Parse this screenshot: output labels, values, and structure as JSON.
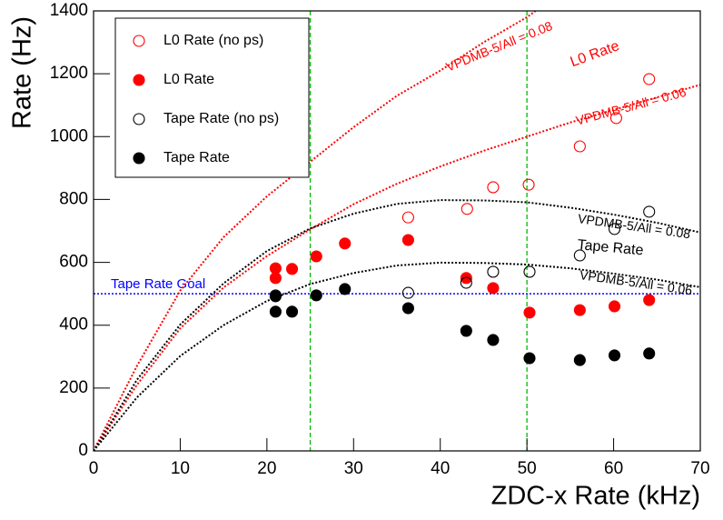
{
  "chart_data": {
    "type": "scatter",
    "xlabel": "ZDC-x Rate (kHz)",
    "ylabel": "Rate (Hz)",
    "xlim": [
      0,
      70
    ],
    "ylim": [
      0,
      1400
    ],
    "xticks": [
      0,
      10,
      20,
      30,
      40,
      50,
      60,
      70
    ],
    "yticks": [
      0,
      200,
      400,
      600,
      800,
      1000,
      1200,
      1400
    ],
    "series": [
      {
        "name": "L0 Rate (no ps)",
        "color": "#ff0000",
        "marker": "open",
        "x": [
          36.3,
          43.1,
          46.1,
          50.2,
          56.1,
          60.3,
          64.1
        ],
        "values": [
          743,
          770,
          839,
          847,
          969,
          1059,
          1183
        ]
      },
      {
        "name": "L0 Rate",
        "color": "#ff0000",
        "marker": "filled",
        "x": [
          21.0,
          21.0,
          22.9,
          25.7,
          29.0,
          36.3,
          43.0,
          46.1,
          50.3,
          56.1,
          60.1,
          64.1
        ],
        "values": [
          581,
          550,
          579,
          619,
          660,
          671,
          550,
          518,
          440,
          448,
          460,
          480
        ]
      },
      {
        "name": "Tape Rate (no ps)",
        "color": "#000000",
        "marker": "open",
        "x": [
          21.0,
          36.3,
          43.0,
          46.1,
          50.3,
          56.1,
          60.1,
          64.1
        ],
        "values": [
          495,
          503,
          535,
          570,
          570,
          622,
          706,
          761
        ]
      },
      {
        "name": "Tape Rate",
        "color": "#000000",
        "marker": "filled",
        "x": [
          21.0,
          21.0,
          22.9,
          25.7,
          29.0,
          36.3,
          43.0,
          46.1,
          50.3,
          56.1,
          60.1,
          64.1
        ],
        "values": [
          492,
          443,
          443,
          495,
          515,
          454,
          382,
          353,
          295,
          289,
          304,
          310
        ]
      }
    ],
    "curves": [
      {
        "color": "#ff0000",
        "x": [
          0,
          5,
          10,
          15,
          20,
          25,
          30,
          35,
          40,
          45,
          50,
          51
        ],
        "values": [
          0,
          270,
          510,
          680,
          810,
          920,
          1030,
          1130,
          1210,
          1300,
          1380,
          1400
        ]
      },
      {
        "color": "#ff0000",
        "x": [
          0,
          5,
          10,
          15,
          20,
          25,
          30,
          35,
          40,
          45,
          50,
          55,
          60,
          65,
          70
        ],
        "values": [
          0,
          210,
          390,
          520,
          620,
          705,
          785,
          850,
          905,
          955,
          1000,
          1045,
          1085,
          1125,
          1165
        ]
      },
      {
        "color": "#000000",
        "x": [
          0,
          5,
          10,
          15,
          20,
          25,
          30,
          35,
          40,
          45,
          50,
          55,
          60,
          65,
          70
        ],
        "values": [
          0,
          226,
          402,
          533,
          636,
          708,
          755,
          786,
          798,
          797,
          791,
          774,
          752,
          726,
          695
        ]
      },
      {
        "color": "#000000",
        "x": [
          0,
          5,
          10,
          15,
          20,
          25,
          30,
          35,
          40,
          45,
          50,
          55,
          60,
          65,
          70
        ],
        "values": [
          0,
          170,
          302,
          400,
          477,
          531,
          566,
          590,
          599,
          598,
          593,
          581,
          564,
          545,
          521
        ]
      }
    ],
    "vlines": {
      "color": "#00bb00",
      "x": [
        25,
        50
      ]
    },
    "hline": {
      "color": "#0000ff",
      "value": 500,
      "label": "Tape Rate Goal"
    },
    "annotations": [
      {
        "text": "VPDMB-5/All = 0.08",
        "color": "#ff0000"
      },
      {
        "text": "L0 Rate",
        "color": "#ff0000"
      },
      {
        "text": "VPDMB-5/All = 0.06",
        "color": "#ff0000"
      },
      {
        "text": "VPDMB-5/All = 0.08",
        "color": "#000000"
      },
      {
        "text": "Tape Rate",
        "color": "#000000"
      },
      {
        "text": "VPDMB-5/All = 0.06",
        "color": "#000000"
      }
    ]
  }
}
